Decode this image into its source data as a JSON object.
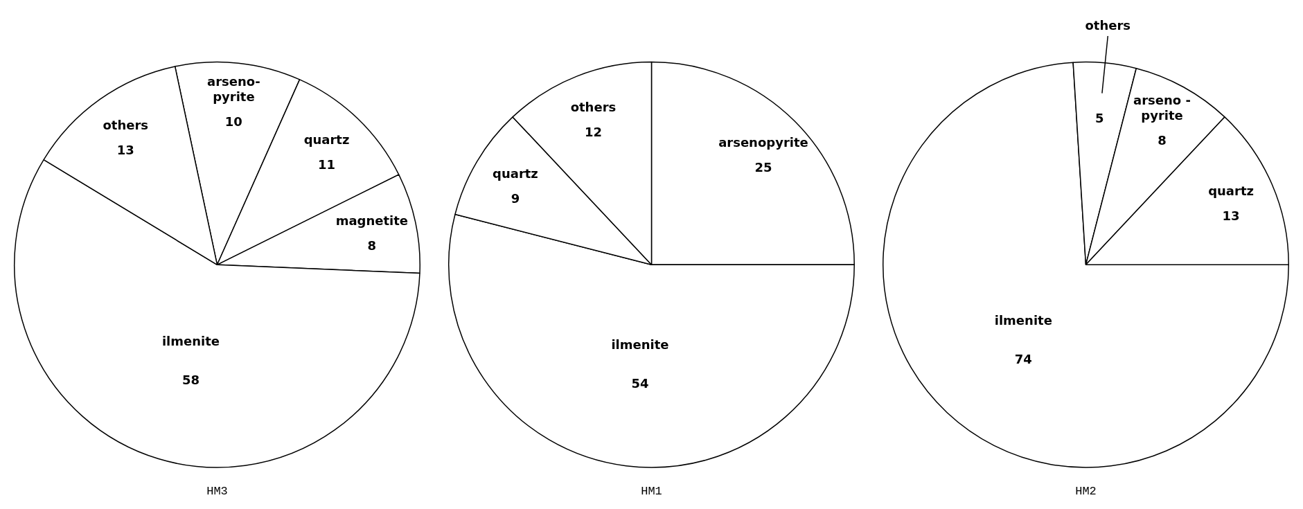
{
  "chart_data": [
    {
      "type": "pie",
      "title": "HM3",
      "categories": [
        "arseno-\npyrite",
        "quartz",
        "magnetite",
        "ilmenite",
        "others"
      ],
      "values": [
        10,
        11,
        8,
        58,
        13
      ],
      "colors": [
        "#ffffff",
        "#ffffff",
        "#ffffff",
        "#ffffff",
        "#ffffff"
      ],
      "data_labels": true,
      "legend": false
    },
    {
      "type": "pie",
      "title": "HM1",
      "categories": [
        "arsenopyrite",
        "ilmenite",
        "quartz",
        "others"
      ],
      "values": [
        25,
        54,
        9,
        12
      ],
      "colors": [
        "#ffffff",
        "#ffffff",
        "#ffffff",
        "#ffffff"
      ],
      "data_labels": true,
      "legend": false
    },
    {
      "type": "pie",
      "title": "HM2",
      "categories": [
        "ilmenite",
        "others",
        "arseno -\npyrite",
        "quartz"
      ],
      "values": [
        74,
        5,
        8,
        13
      ],
      "colors": [
        "#ffffff",
        "#ffffff",
        "#ffffff",
        "#ffffff"
      ],
      "data_labels": true,
      "legend": false
    }
  ]
}
